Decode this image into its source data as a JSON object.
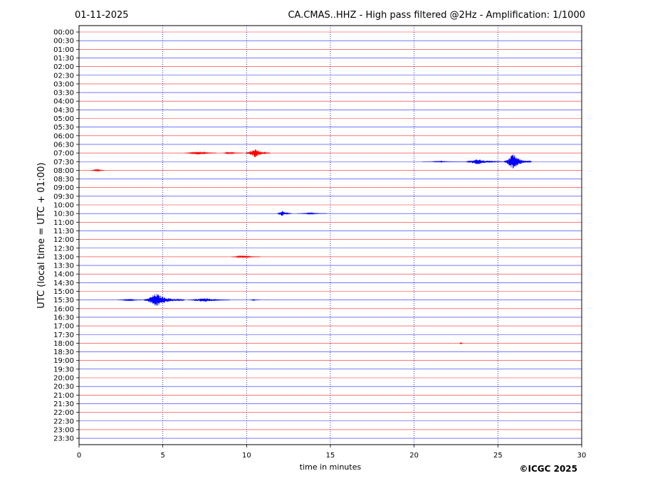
{
  "header": {
    "date": "01-11-2025",
    "title": "CA.CMAS..HHZ - High pass filtered @2Hz - Amplification: 1/1000"
  },
  "footer": {
    "copyright": "©ICGC 2025"
  },
  "chart_data": {
    "type": "line",
    "title": "CA.CMAS..HHZ - High pass filtered @2Hz - Amplification: 1/1000",
    "xlabel": "time in minutes",
    "ylabel": "UTC (local time = UTC + 01:00)",
    "xlim": [
      0,
      30
    ],
    "xticks": [
      "0",
      "5",
      "10",
      "15",
      "20",
      "25",
      "30"
    ],
    "vertical_gridlines_minutes": [
      5,
      10,
      15,
      20,
      25
    ],
    "rows": [
      "00:00",
      "00:30",
      "01:00",
      "01:30",
      "02:00",
      "02:30",
      "03:00",
      "03:30",
      "04:00",
      "04:30",
      "05:00",
      "05:30",
      "06:00",
      "06:30",
      "07:00",
      "07:30",
      "08:00",
      "08:30",
      "09:00",
      "09:30",
      "10:00",
      "10:30",
      "11:00",
      "11:30",
      "12:00",
      "12:30",
      "13:00",
      "13:30",
      "14:00",
      "14:30",
      "15:00",
      "15:30",
      "16:00",
      "16:30",
      "17:00",
      "17:30",
      "18:00",
      "18:30",
      "19:00",
      "19:30",
      "20:00",
      "20:30",
      "21:00",
      "21:30",
      "22:00",
      "22:30",
      "23:00",
      "23:30"
    ],
    "trace_colors": [
      "#ff0000",
      "#0000ff"
    ],
    "events": [
      {
        "row": "07:00",
        "color": "#ff0000",
        "start_min": 6.3,
        "end_min": 8.2,
        "amp": 0.35
      },
      {
        "row": "07:00",
        "color": "#ff0000",
        "start_min": 8.6,
        "end_min": 9.8,
        "amp": 0.25
      },
      {
        "row": "07:00",
        "color": "#ff0000",
        "start_min": 9.9,
        "end_min": 11.4,
        "amp": 0.9
      },
      {
        "row": "07:30",
        "color": "#0000ff",
        "start_min": 20.5,
        "end_min": 23.0,
        "amp": 0.1
      },
      {
        "row": "07:30",
        "color": "#0000ff",
        "start_min": 23.0,
        "end_min": 25.3,
        "amp": 0.6
      },
      {
        "row": "07:30",
        "color": "#0000ff",
        "start_min": 25.3,
        "end_min": 27.0,
        "amp": 1.6
      },
      {
        "row": "08:00",
        "color": "#ff0000",
        "start_min": 0.7,
        "end_min": 1.5,
        "amp": 0.25
      },
      {
        "row": "10:30",
        "color": "#0000ff",
        "start_min": 11.8,
        "end_min": 12.7,
        "amp": 0.6
      },
      {
        "row": "10:30",
        "color": "#0000ff",
        "start_min": 13.0,
        "end_min": 14.8,
        "amp": 0.15
      },
      {
        "row": "13:00",
        "color": "#ff0000",
        "start_min": 9.1,
        "end_min": 10.8,
        "amp": 0.25
      },
      {
        "row": "15:30",
        "color": "#0000ff",
        "start_min": 2.3,
        "end_min": 3.8,
        "amp": 0.2
      },
      {
        "row": "15:30",
        "color": "#0000ff",
        "start_min": 3.8,
        "end_min": 6.3,
        "amp": 1.4
      },
      {
        "row": "15:30",
        "color": "#0000ff",
        "start_min": 6.5,
        "end_min": 9.0,
        "amp": 0.45
      },
      {
        "row": "15:30",
        "color": "#0000ff",
        "start_min": 10.2,
        "end_min": 10.8,
        "amp": 0.1
      },
      {
        "row": "18:00",
        "color": "#ff0000",
        "start_min": 22.7,
        "end_min": 22.9,
        "amp": 0.15
      }
    ]
  }
}
